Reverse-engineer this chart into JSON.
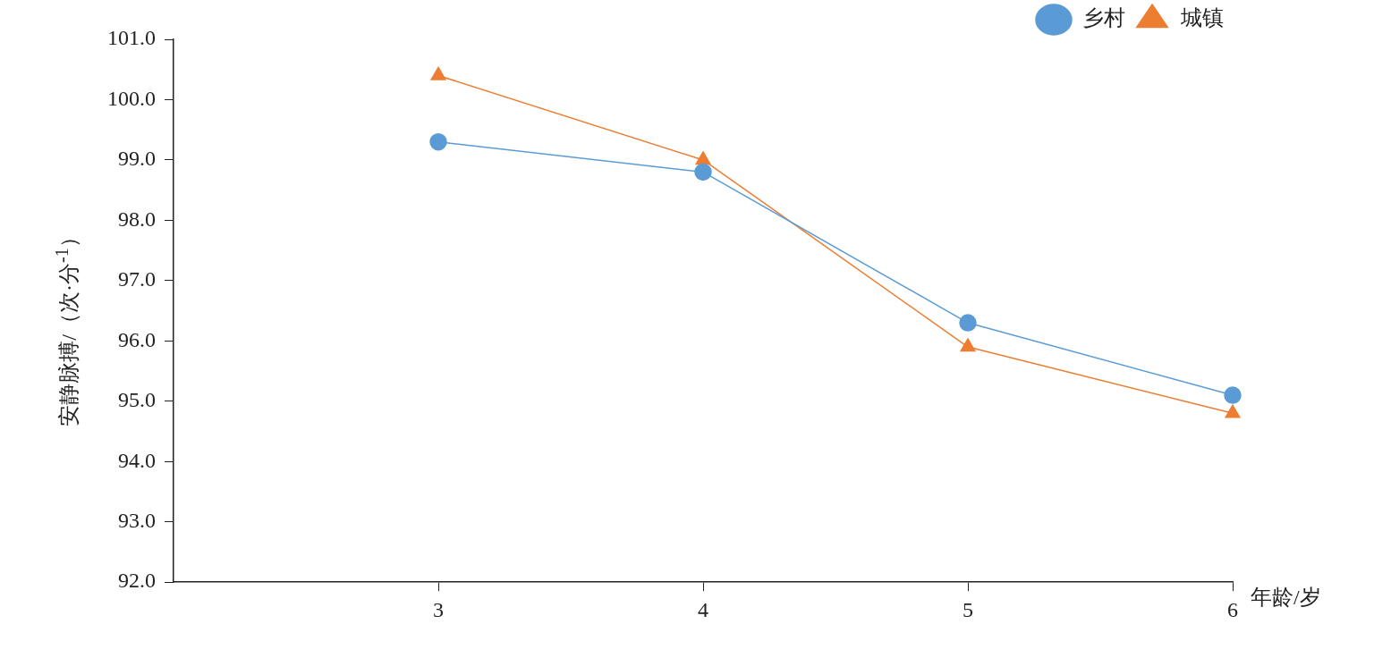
{
  "chart_data": {
    "type": "line",
    "xlabel": "年龄/岁",
    "ylabel": "安静脉搏/（次·分$^{-1}$）",
    "legend": "top right",
    "x": [
      3,
      4,
      5,
      6
    ],
    "xlim": [
      2,
      6
    ],
    "xticks": [
      3,
      4,
      5,
      6
    ],
    "ylim": [
      92,
      101
    ],
    "yticks": [
      {
        "value": 92,
        "label": "92.0"
      },
      {
        "value": 93,
        "label": "93.0"
      },
      {
        "value": 94,
        "label": "94.0"
      },
      {
        "value": 95,
        "label": "95.0"
      },
      {
        "value": 96,
        "label": "96.0"
      },
      {
        "value": 97,
        "label": "97.0"
      },
      {
        "value": 98,
        "label": "98.0"
      },
      {
        "value": 99,
        "label": "99.0"
      },
      {
        "value": 100,
        "label": "100.0"
      },
      {
        "value": 101,
        "label": "101.0"
      }
    ],
    "series": [
      {
        "name": "乡村",
        "color": "#5b9bd5",
        "marker": "circle",
        "values": [
          99.3,
          98.8,
          96.3,
          95.1
        ]
      },
      {
        "name": "城镇",
        "color": "#ed7d31",
        "marker": "triangle",
        "values": [
          100.4,
          99.0,
          95.9,
          94.8
        ]
      }
    ]
  }
}
